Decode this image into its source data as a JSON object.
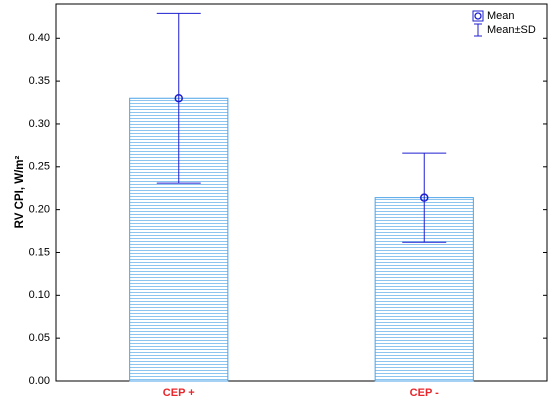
{
  "chart_data": {
    "type": "bar",
    "ylabel": "RV CPI, W/m²",
    "categories": [
      "CEP +",
      "CEP -"
    ],
    "values": [
      0.33,
      0.214
    ],
    "errors": [
      0.099,
      0.052
    ],
    "legend": [
      "Mean",
      "Mean±SD"
    ],
    "color": "#4aa3e8",
    "marker_color": "#1f1fd0",
    "category_color": "#e8262b",
    "ylim": [
      0,
      0.44
    ],
    "yticks": [
      {
        "value": 0,
        "label": "0.00"
      },
      {
        "value": 0.05,
        "label": "0.05"
      },
      {
        "value": 0.1,
        "label": "0.10"
      },
      {
        "value": 0.15,
        "label": "0.15"
      },
      {
        "value": 0.2,
        "label": "0.20"
      },
      {
        "value": 0.25,
        "label": "0.25"
      },
      {
        "value": 0.3,
        "label": "0.30"
      },
      {
        "value": 0.35,
        "label": "0.35"
      },
      {
        "value": 0.4,
        "label": "0.40"
      }
    ],
    "grid": false
  }
}
